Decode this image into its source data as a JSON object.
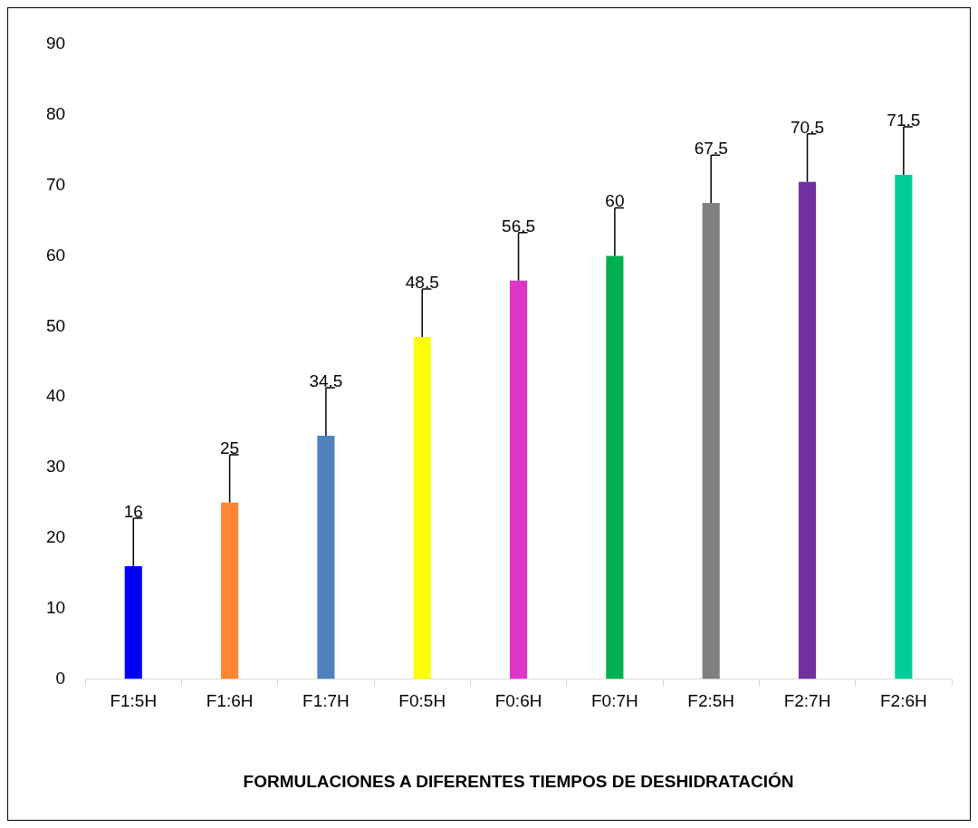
{
  "chart_data": {
    "type": "bar",
    "xlabel": "FORMULACIONES A DIFERENTES TIEMPOS DE DESHIDRATACIÓN",
    "categories": [
      "F1:5H",
      "F1:6H",
      "F1:7H",
      "F0:5H",
      "F0:6H",
      "F0:7H",
      "F2:5H",
      "F2:7H",
      "F2:6H"
    ],
    "values": [
      16,
      25,
      34.5,
      48.5,
      56.5,
      60,
      67.5,
      70.5,
      71.5
    ],
    "colors": [
      "#0000ff",
      "#ff8533",
      "#4f81bd",
      "#ffff00",
      "#dd35c8",
      "#00b050",
      "#808080",
      "#7030a0",
      "#00cc99"
    ],
    "errors": [
      [
        16,
        22.8
      ],
      [
        25,
        31.8
      ],
      [
        34.5,
        41.3
      ],
      [
        48.5,
        55.3
      ],
      [
        56.5,
        63.3
      ],
      [
        60,
        66.8
      ],
      [
        67.5,
        74.3
      ],
      [
        70.5,
        77.3
      ],
      [
        71.5,
        78.3
      ]
    ],
    "ylim": [
      0,
      90
    ],
    "yticks": [
      0,
      10,
      20,
      30,
      40,
      50,
      60,
      70,
      80,
      90
    ],
    "value_labels": [
      "16",
      "25",
      "34.5",
      "48.5",
      "56.5",
      "60",
      "67.5",
      "70.5",
      "71.5"
    ],
    "grid": false,
    "legend": false
  }
}
